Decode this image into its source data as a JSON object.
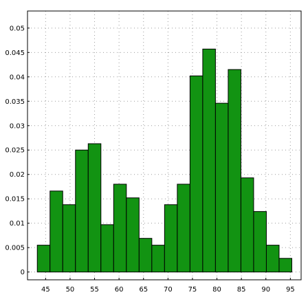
{
  "chart_data": {
    "type": "bar",
    "subtype": "histogram",
    "title": "",
    "xlabel": "",
    "ylabel": "",
    "bin_width": 2.6,
    "bins": [
      {
        "x_start": 43.3,
        "x_end": 45.9,
        "value": 0.0055
      },
      {
        "x_start": 45.9,
        "x_end": 48.5,
        "value": 0.0166
      },
      {
        "x_start": 48.5,
        "x_end": 51.1,
        "value": 0.0138
      },
      {
        "x_start": 51.1,
        "x_end": 53.7,
        "value": 0.025
      },
      {
        "x_start": 53.7,
        "x_end": 56.3,
        "value": 0.0263
      },
      {
        "x_start": 56.3,
        "x_end": 58.9,
        "value": 0.0097
      },
      {
        "x_start": 58.9,
        "x_end": 61.5,
        "value": 0.018
      },
      {
        "x_start": 61.5,
        "x_end": 64.1,
        "value": 0.0152
      },
      {
        "x_start": 64.1,
        "x_end": 66.7,
        "value": 0.0069
      },
      {
        "x_start": 66.7,
        "x_end": 69.3,
        "value": 0.0055
      },
      {
        "x_start": 69.3,
        "x_end": 71.9,
        "value": 0.0138
      },
      {
        "x_start": 71.9,
        "x_end": 74.5,
        "value": 0.018
      },
      {
        "x_start": 74.5,
        "x_end": 77.1,
        "value": 0.0402
      },
      {
        "x_start": 77.1,
        "x_end": 79.7,
        "value": 0.0457
      },
      {
        "x_start": 79.7,
        "x_end": 82.3,
        "value": 0.0346
      },
      {
        "x_start": 82.3,
        "x_end": 84.9,
        "value": 0.0415
      },
      {
        "x_start": 84.9,
        "x_end": 87.5,
        "value": 0.0193
      },
      {
        "x_start": 87.5,
        "x_end": 90.1,
        "value": 0.0124
      },
      {
        "x_start": 90.1,
        "x_end": 92.7,
        "value": 0.0055
      },
      {
        "x_start": 92.7,
        "x_end": 95.3,
        "value": 0.0028
      }
    ],
    "xlim": [
      41.3,
      97.2
    ],
    "ylim": [
      -0.0016,
      0.0535
    ],
    "x_ticks": [
      45,
      50,
      55,
      60,
      65,
      70,
      75,
      80,
      85,
      90,
      95
    ],
    "x_tick_labels": [
      "45",
      "50",
      "55",
      "60",
      "65",
      "70",
      "75",
      "80",
      "85",
      "90",
      "95"
    ],
    "y_ticks": [
      0,
      0.005,
      0.01,
      0.015,
      0.02,
      0.025,
      0.03,
      0.035,
      0.04,
      0.045,
      0.05
    ],
    "y_tick_labels": [
      "0",
      "0.005",
      "0.01",
      "0.015",
      "0.02",
      "0.025",
      "0.03",
      "0.035",
      "0.04",
      "0.045",
      "0.05"
    ],
    "grid": true,
    "legend": "none",
    "colors": {
      "bar_fill": "#129312",
      "bar_edge": "#000000",
      "grid": "#9a9a9a",
      "frame": "#000000"
    }
  }
}
